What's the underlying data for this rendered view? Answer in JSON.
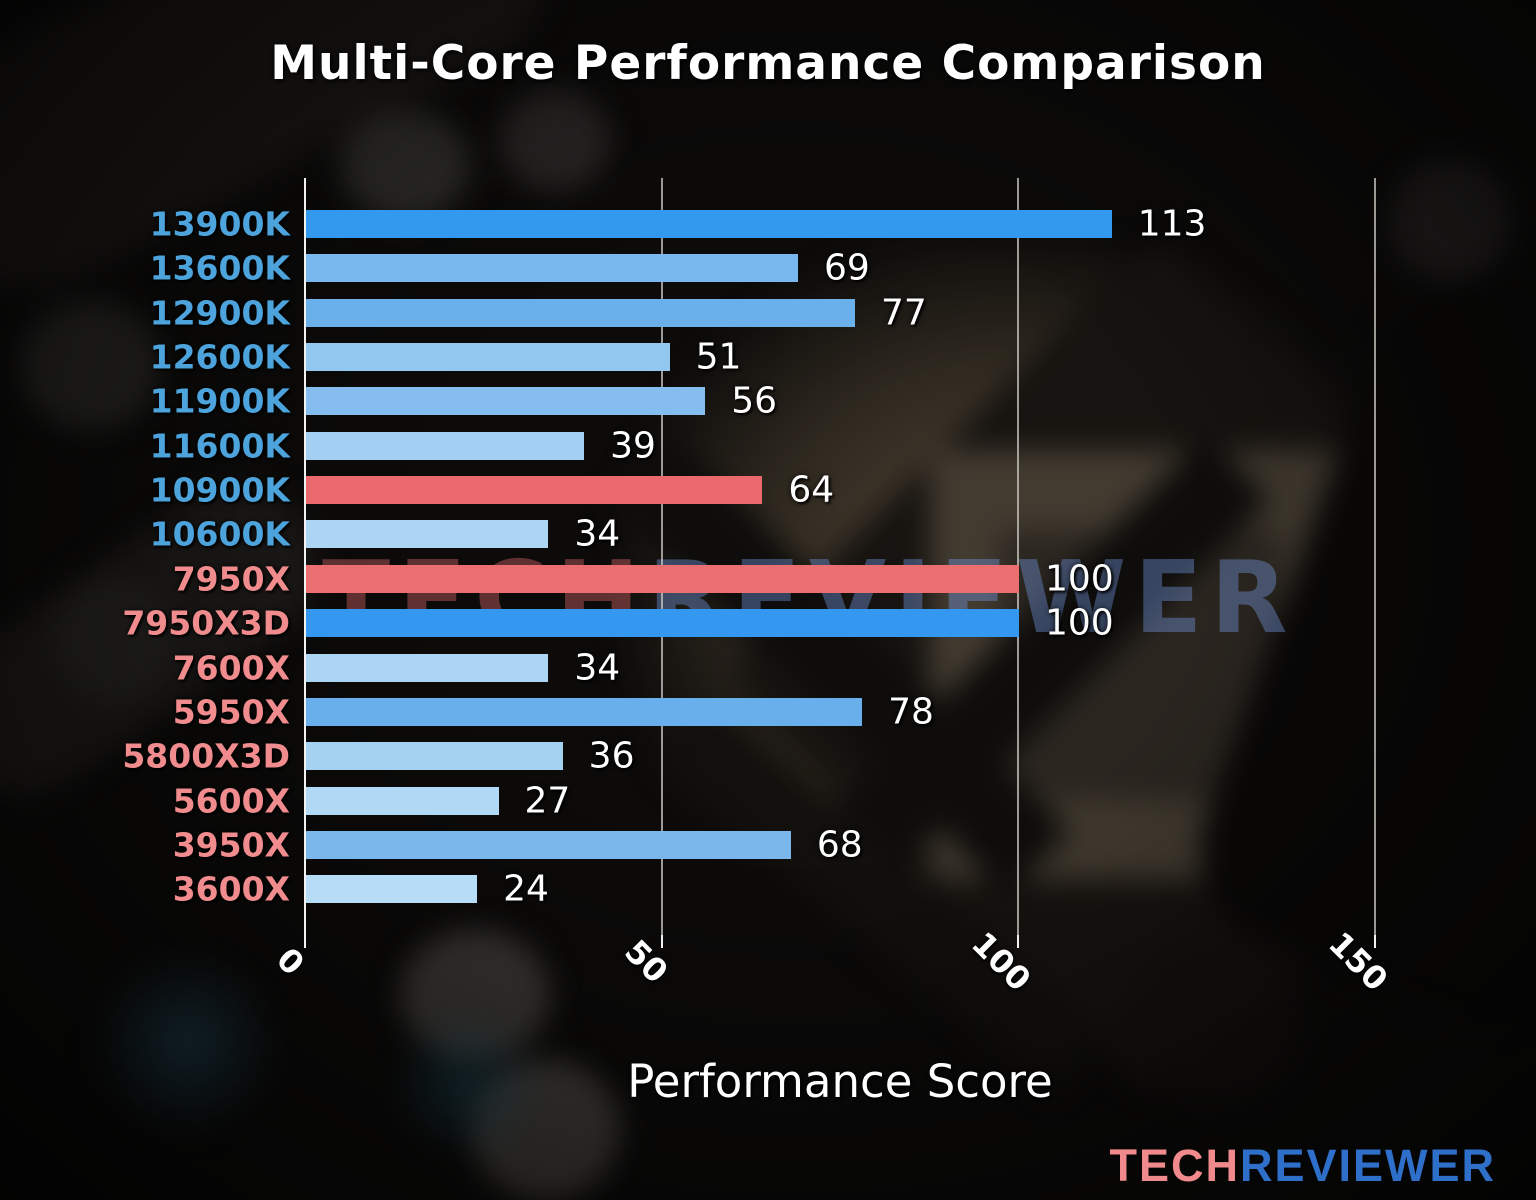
{
  "title": "Multi-Core Performance Comparison",
  "watermark": {
    "part1": "TECH",
    "part2": "REVIEWER"
  },
  "logo": {
    "part1": "TECH",
    "part2": "REVIEWER",
    "part1_color": "#f18a8c",
    "part2_color": "#2e6fc9"
  },
  "chart_data": {
    "type": "bar",
    "orientation": "horizontal",
    "title": "Multi-Core Performance Comparison",
    "xlabel": "Performance Score",
    "ylabel": "",
    "xlim": [
      0,
      150
    ],
    "xticks": [
      "0",
      "50",
      "100",
      "150"
    ],
    "grid": true,
    "legend": "none",
    "categories": [
      "13900K",
      "13600K",
      "12900K",
      "12600K",
      "11900K",
      "11600K",
      "10900K",
      "10600K",
      "7950X",
      "7950X3D",
      "7600X",
      "5950X",
      "5800X3D",
      "5600X",
      "3950X",
      "3600X"
    ],
    "values": [
      113,
      69,
      77,
      51,
      56,
      39,
      64,
      34,
      100,
      100,
      34,
      78,
      36,
      27,
      68,
      24
    ],
    "bar_colors": [
      "#3399ee",
      "#79b8ee",
      "#6ab1ec",
      "#92c7f0",
      "#85beee",
      "#a3d0f2",
      "#eb686c",
      "#abd5f3",
      "#eb6e71",
      "#3598f0",
      "#abd5f3",
      "#68afec",
      "#a6d2f2",
      "#b1d8f4",
      "#7ab8ec",
      "#b7dcf5"
    ],
    "category_label_colors": [
      "#4da3db",
      "#4da3db",
      "#4da3db",
      "#4da3db",
      "#4da3db",
      "#4da3db",
      "#4da3db",
      "#4da3db",
      "#f18c8e",
      "#f18c8e",
      "#f18c8e",
      "#f18c8e",
      "#f18c8e",
      "#f18c8e",
      "#f18c8e",
      "#f18c8e"
    ],
    "value_label_color": "#ffffff",
    "gridline_color": "#cdcac4",
    "axis_text_color": "#ffffff"
  }
}
